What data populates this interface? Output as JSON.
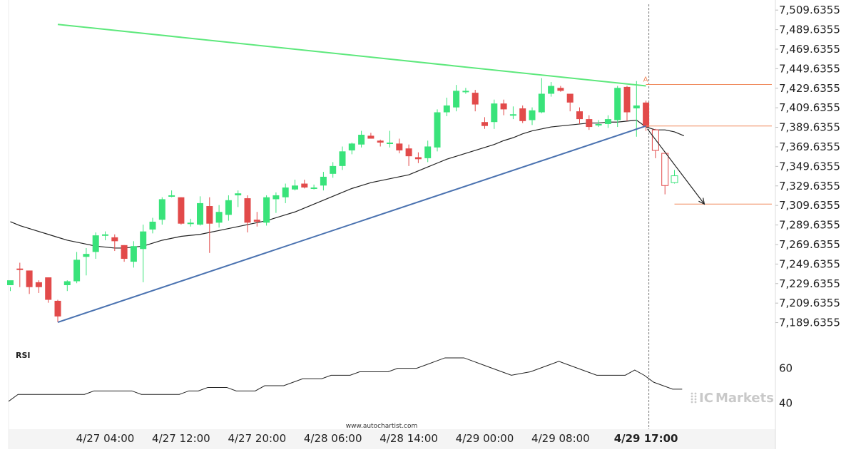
{
  "chart_data": {
    "type": "candlestick",
    "y_ticks": [
      "7,509.6355",
      "7,489.6355",
      "7,469.6355",
      "7,449.6355",
      "7,429.6355",
      "7,409.6355",
      "7,389.6355",
      "7,369.6355",
      "7,349.6355",
      "7,329.6355",
      "7,309.6355",
      "7,289.6355",
      "7,269.6355",
      "7,249.6355",
      "7,229.6355",
      "7,209.6355",
      "7,189.6355"
    ],
    "y_tick_values": [
      7509.6355,
      7489.6355,
      7469.6355,
      7449.6355,
      7429.6355,
      7409.6355,
      7389.6355,
      7369.6355,
      7349.6355,
      7329.6355,
      7309.6355,
      7289.6355,
      7269.6355,
      7249.6355,
      7229.6355,
      7209.6355,
      7189.6355
    ],
    "ylim": [
      7169.6,
      7515.6
    ],
    "x_ticks": [
      {
        "label": "4/27 04:00",
        "bar": 10
      },
      {
        "label": "4/27 12:00",
        "bar": 18
      },
      {
        "label": "4/27 20:00",
        "bar": 26
      },
      {
        "label": "4/28 06:00",
        "bar": 34
      },
      {
        "label": "4/28 14:00",
        "bar": 42
      },
      {
        "label": "4/29 00:00",
        "bar": 50
      },
      {
        "label": "4/29 08:00",
        "bar": 58
      },
      {
        "label": "4/29 17:00",
        "bar": 67,
        "bold": true
      }
    ],
    "candles": [
      [
        7228,
        7233,
        7226,
        7222
      ],
      [
        7245,
        7244,
        7251,
        7226
      ],
      [
        7243,
        7226,
        7243,
        7219
      ],
      [
        7231,
        7226,
        7233,
        7220
      ],
      [
        7236,
        7213,
        7236,
        7210
      ],
      [
        7212,
        7196,
        7213,
        7190
      ],
      [
        7228,
        7232,
        7233,
        7222
      ],
      [
        7232,
        7254,
        7262,
        7230
      ],
      [
        7257,
        7260,
        7266,
        7238
      ],
      [
        7262,
        7279,
        7282,
        7255
      ],
      [
        7280,
        7280,
        7283,
        7274
      ],
      [
        7277,
        7273,
        7280,
        7263
      ],
      [
        7269,
        7255,
        7269,
        7252
      ],
      [
        7252,
        7268,
        7273,
        7246
      ],
      [
        7265,
        7283,
        7290,
        7231
      ],
      [
        7285,
        7293,
        7297,
        7281
      ],
      [
        7295,
        7316,
        7318,
        7290
      ],
      [
        7320,
        7320,
        7325,
        7318
      ],
      [
        7318,
        7291,
        7318,
        7290
      ],
      [
        7291,
        7292,
        7296,
        7288
      ],
      [
        7290,
        7312,
        7319,
        7289
      ],
      [
        7309,
        7291,
        7318,
        7261
      ],
      [
        7292,
        7303,
        7310,
        7287
      ],
      [
        7300,
        7315,
        7320,
        7294
      ],
      [
        7320,
        7322,
        7325,
        7308
      ],
      [
        7317,
        7292,
        7320,
        7282
      ],
      [
        7295,
        7293,
        7303,
        7288
      ],
      [
        7292,
        7318,
        7320,
        7289
      ],
      [
        7316,
        7320,
        7323,
        7302
      ],
      [
        7318,
        7328,
        7332,
        7312
      ],
      [
        7326,
        7330,
        7336,
        7325
      ],
      [
        7332,
        7328,
        7336,
        7327
      ],
      [
        7327,
        7328,
        7331,
        7326
      ],
      [
        7330,
        7339,
        7344,
        7325
      ],
      [
        7342,
        7350,
        7354,
        7338
      ],
      [
        7350,
        7365,
        7370,
        7346
      ],
      [
        7366,
        7373,
        7374,
        7362
      ],
      [
        7372,
        7382,
        7386,
        7369
      ],
      [
        7381,
        7378,
        7384,
        7378
      ],
      [
        7376,
        7374,
        7377,
        7370
      ],
      [
        7373,
        7374,
        7386,
        7369
      ],
      [
        7373,
        7366,
        7378,
        7363
      ],
      [
        7368,
        7360,
        7372,
        7350
      ],
      [
        7359,
        7357,
        7364,
        7353
      ],
      [
        7358,
        7370,
        7376,
        7354
      ],
      [
        7369,
        7405,
        7408,
        7365
      ],
      [
        7405,
        7412,
        7420,
        7401
      ],
      [
        7410,
        7427,
        7433,
        7406
      ],
      [
        7427,
        7427,
        7430,
        7424
      ],
      [
        7425,
        7413,
        7428,
        7406
      ],
      [
        7395,
        7391,
        7400,
        7388
      ],
      [
        7395,
        7414,
        7418,
        7388
      ],
      [
        7414,
        7408,
        7418,
        7402
      ],
      [
        7403,
        7403,
        7411,
        7398
      ],
      [
        7409,
        7396,
        7412,
        7394
      ],
      [
        7397,
        7407,
        7410,
        7392
      ],
      [
        7405,
        7424,
        7440,
        7404
      ],
      [
        7424,
        7432,
        7436,
        7421
      ],
      [
        7430,
        7427,
        7432,
        7426
      ],
      [
        7424,
        7415,
        7424,
        7406
      ],
      [
        7406,
        7398,
        7410,
        7393
      ],
      [
        7398,
        7390,
        7402,
        7387
      ],
      [
        7392,
        7393,
        7397,
        7390
      ],
      [
        7393,
        7398,
        7402,
        7389
      ],
      [
        7397,
        7430,
        7432,
        7390
      ],
      [
        7431,
        7405,
        7432,
        7396
      ],
      [
        7409,
        7412,
        7437,
        7380
      ],
      [
        7415,
        7390,
        7417,
        7386
      ]
    ],
    "pattern_candles": [
      {
        "bar": 68,
        "open": 7387,
        "close": 7366,
        "high": 7388,
        "low": 7358,
        "bull": false
      },
      {
        "bar": 69,
        "open": 7363,
        "close": 7330,
        "high": 7363,
        "low": 7321,
        "bull": false
      },
      {
        "bar": 70,
        "open": 7333,
        "close": 7340,
        "high": 7346,
        "low": 7332,
        "bull": true
      }
    ],
    "ma": [
      7293,
      7289,
      7286,
      7283,
      7280,
      7277,
      7274,
      7272,
      7270,
      7268,
      7267,
      7266,
      7266,
      7267,
      7268,
      7271,
      7274,
      7276,
      7278,
      7279,
      7280,
      7282,
      7284,
      7286,
      7288,
      7290,
      7292,
      7294,
      7297,
      7300,
      7303,
      7307,
      7311,
      7315,
      7319,
      7323,
      7327,
      7330,
      7333,
      7335,
      7337,
      7339,
      7341,
      7345,
      7349,
      7353,
      7357,
      7360,
      7363,
      7366,
      7369,
      7372,
      7376,
      7379,
      7383,
      7386,
      7388,
      7390,
      7391,
      7392,
      7393,
      7394,
      7394,
      7395,
      7395,
      7396,
      7397,
      7390,
      7387,
      7387,
      7385,
      7381
    ],
    "resistance_line": {
      "from": {
        "bar": 5,
        "value": 7495
      },
      "to": {
        "bar": 67,
        "value": 7432
      }
    },
    "support_line": {
      "from": {
        "bar": 5,
        "value": 7190
      },
      "to": {
        "bar": 67,
        "value": 7391
      }
    },
    "forecast_arrow": {
      "from": {
        "bar": 67,
        "value": 7388
      },
      "to": {
        "bar": 73,
        "value": 7311
      }
    },
    "levels": [
      {
        "value": 7433.5,
        "from_bar": 67
      },
      {
        "value": 7391,
        "from_bar": 67
      },
      {
        "value": 7311,
        "from_bar": 70
      }
    ],
    "point_label": "A",
    "rsi": {
      "label": "RSI",
      "ticks": [
        60,
        40
      ],
      "ylim": [
        25,
        75
      ],
      "values": [
        41,
        45,
        45,
        45,
        45,
        45,
        45,
        45,
        45,
        47,
        47,
        47,
        47,
        47,
        45,
        45,
        45,
        45,
        45,
        47,
        47,
        49,
        49,
        49,
        47,
        47,
        47,
        50,
        50,
        50,
        52,
        54,
        54,
        54,
        56,
        56,
        56,
        58,
        58,
        58,
        58,
        60,
        60,
        60,
        62,
        64,
        66,
        66,
        66,
        64,
        62,
        60,
        58,
        56,
        57,
        58,
        60,
        62,
        64,
        62,
        60,
        58,
        56,
        56,
        56,
        56,
        59,
        56,
        52,
        50,
        48,
        48
      ]
    },
    "watermark": "www.autochartist.com",
    "brand": {
      "prefix": "IC",
      "name": "Markets"
    }
  },
  "colors": {
    "bull": "#39e37a",
    "bear": "#e24a4a",
    "resistance": "#5de87c",
    "support": "#4a72b0",
    "level": "#f08a5d",
    "ma": "#222222",
    "grid": "#eeeeee",
    "axis_text": "#222222",
    "brand": "#c9c9c9"
  }
}
